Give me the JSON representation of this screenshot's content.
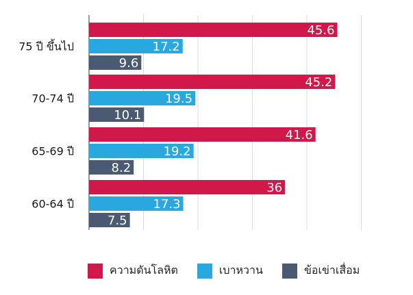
{
  "chart_data": {
    "type": "bar",
    "orientation": "horizontal",
    "categories": [
      "75 ปี ขึ้นไป",
      "70-74 ปี",
      "65-69 ปี",
      "60-64 ปี"
    ],
    "series": [
      {
        "name": "ความดันโลหิต",
        "values": [
          45.6,
          45.2,
          41.6,
          36
        ],
        "color": "#d0184a"
      },
      {
        "name": "เบาหวาน",
        "values": [
          17.2,
          19.5,
          19.2,
          17.3
        ],
        "color": "#29a7df"
      },
      {
        "name": "ข้อเข่าเสื่อม",
        "values": [
          9.6,
          10.1,
          8.2,
          7.5
        ],
        "color": "#4a5a73"
      }
    ],
    "xlim": [
      0,
      50
    ],
    "grid": true,
    "legend_position": "bottom",
    "data_labels": [
      "45.6",
      "17.2",
      "9.6",
      "45.2",
      "19.5",
      "10.1",
      "41.6",
      "19.2",
      "8.2",
      "36",
      "17.3",
      "7.5"
    ]
  }
}
